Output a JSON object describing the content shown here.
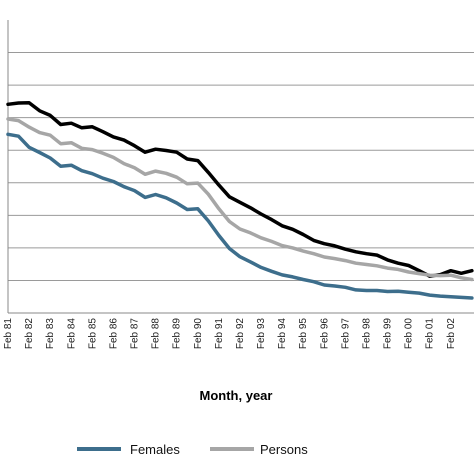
{
  "chart_data": {
    "type": "line",
    "xlabel": "Month, year",
    "ylabel": "",
    "title": "",
    "grid": true,
    "legend_position": "bottom",
    "x_tick_labels": [
      "Feb 81",
      "Feb 82",
      "Feb 83",
      "Feb 84",
      "Feb 85",
      "Feb 86",
      "Feb 87",
      "Feb 88",
      "Feb 89",
      "Feb 90",
      "Feb 91",
      "Feb 92",
      "Feb 93",
      "Feb 94",
      "Feb 95",
      "Feb 96",
      "Feb 97",
      "Feb 98",
      "Feb 99",
      "Feb 00",
      "Feb 01",
      "Feb 02"
    ],
    "x_range": [
      1981.0,
      2003.1
    ],
    "y_gridlines": [
      1,
      2,
      3,
      4,
      5,
      6,
      7,
      8
    ],
    "y_range": [
      0,
      9
    ],
    "series": [
      {
        "name": "",
        "color": "#000000",
        "legend": false,
        "points": [
          [
            1981.0,
            6.41
          ],
          [
            1981.5,
            6.45
          ],
          [
            1982.0,
            6.46
          ],
          [
            1982.5,
            6.21
          ],
          [
            1983.0,
            6.07
          ],
          [
            1983.5,
            5.79
          ],
          [
            1984.0,
            5.83
          ],
          [
            1984.5,
            5.69
          ],
          [
            1985.0,
            5.72
          ],
          [
            1985.5,
            5.57
          ],
          [
            1986.0,
            5.41
          ],
          [
            1986.5,
            5.31
          ],
          [
            1987.0,
            5.14
          ],
          [
            1987.5,
            4.94
          ],
          [
            1988.0,
            5.03
          ],
          [
            1988.5,
            4.99
          ],
          [
            1989.0,
            4.94
          ],
          [
            1989.5,
            4.73
          ],
          [
            1990.0,
            4.68
          ],
          [
            1990.5,
            4.32
          ],
          [
            1991.0,
            3.93
          ],
          [
            1991.5,
            3.57
          ],
          [
            1992.0,
            3.4
          ],
          [
            1992.5,
            3.23
          ],
          [
            1993.0,
            3.04
          ],
          [
            1993.5,
            2.87
          ],
          [
            1994.0,
            2.68
          ],
          [
            1994.5,
            2.57
          ],
          [
            1995.0,
            2.41
          ],
          [
            1995.5,
            2.23
          ],
          [
            1996.0,
            2.13
          ],
          [
            1996.5,
            2.06
          ],
          [
            1997.0,
            1.96
          ],
          [
            1997.5,
            1.88
          ],
          [
            1998.0,
            1.82
          ],
          [
            1998.5,
            1.78
          ],
          [
            1999.0,
            1.63
          ],
          [
            1999.5,
            1.53
          ],
          [
            2000.0,
            1.46
          ],
          [
            2000.5,
            1.3
          ],
          [
            2001.0,
            1.13
          ],
          [
            2001.5,
            1.18
          ],
          [
            2002.0,
            1.3
          ],
          [
            2002.5,
            1.22
          ],
          [
            2003.0,
            1.3
          ]
        ]
      },
      {
        "name": "Persons",
        "color": "#a6a6a6",
        "legend": true,
        "points": [
          [
            1981.0,
            5.96
          ],
          [
            1981.5,
            5.91
          ],
          [
            1982.0,
            5.71
          ],
          [
            1982.5,
            5.54
          ],
          [
            1983.0,
            5.46
          ],
          [
            1983.5,
            5.2
          ],
          [
            1984.0,
            5.23
          ],
          [
            1984.5,
            5.06
          ],
          [
            1985.0,
            5.02
          ],
          [
            1985.5,
            4.91
          ],
          [
            1986.0,
            4.78
          ],
          [
            1986.5,
            4.59
          ],
          [
            1987.0,
            4.46
          ],
          [
            1987.5,
            4.26
          ],
          [
            1988.0,
            4.36
          ],
          [
            1988.5,
            4.29
          ],
          [
            1989.0,
            4.17
          ],
          [
            1989.5,
            3.97
          ],
          [
            1990.0,
            3.99
          ],
          [
            1990.5,
            3.65
          ],
          [
            1991.0,
            3.2
          ],
          [
            1991.5,
            2.81
          ],
          [
            1992.0,
            2.58
          ],
          [
            1992.5,
            2.46
          ],
          [
            1993.0,
            2.31
          ],
          [
            1993.5,
            2.2
          ],
          [
            1994.0,
            2.07
          ],
          [
            1994.5,
            2.0
          ],
          [
            1995.0,
            1.9
          ],
          [
            1995.5,
            1.82
          ],
          [
            1996.0,
            1.72
          ],
          [
            1996.5,
            1.67
          ],
          [
            1997.0,
            1.61
          ],
          [
            1997.5,
            1.53
          ],
          [
            1998.0,
            1.49
          ],
          [
            1998.5,
            1.45
          ],
          [
            1999.0,
            1.38
          ],
          [
            1999.5,
            1.34
          ],
          [
            2000.0,
            1.26
          ],
          [
            2000.5,
            1.21
          ],
          [
            2001.0,
            1.16
          ],
          [
            2001.5,
            1.15
          ],
          [
            2002.0,
            1.16
          ],
          [
            2002.5,
            1.08
          ],
          [
            2003.0,
            1.03
          ]
        ]
      },
      {
        "name": "Females",
        "color": "#3d6e8c",
        "legend": true,
        "points": [
          [
            1981.0,
            5.49
          ],
          [
            1981.5,
            5.43
          ],
          [
            1982.0,
            5.09
          ],
          [
            1982.5,
            4.93
          ],
          [
            1983.0,
            4.76
          ],
          [
            1983.5,
            4.51
          ],
          [
            1984.0,
            4.54
          ],
          [
            1984.5,
            4.37
          ],
          [
            1985.0,
            4.28
          ],
          [
            1985.5,
            4.14
          ],
          [
            1986.0,
            4.04
          ],
          [
            1986.5,
            3.88
          ],
          [
            1987.0,
            3.76
          ],
          [
            1987.5,
            3.55
          ],
          [
            1988.0,
            3.64
          ],
          [
            1988.5,
            3.54
          ],
          [
            1989.0,
            3.38
          ],
          [
            1989.5,
            3.18
          ],
          [
            1990.0,
            3.2
          ],
          [
            1990.5,
            2.83
          ],
          [
            1991.0,
            2.38
          ],
          [
            1991.5,
            1.98
          ],
          [
            1992.0,
            1.73
          ],
          [
            1992.5,
            1.57
          ],
          [
            1993.0,
            1.4
          ],
          [
            1993.5,
            1.28
          ],
          [
            1994.0,
            1.17
          ],
          [
            1994.5,
            1.11
          ],
          [
            1995.0,
            1.03
          ],
          [
            1995.5,
            0.96
          ],
          [
            1996.0,
            0.86
          ],
          [
            1996.5,
            0.83
          ],
          [
            1997.0,
            0.79
          ],
          [
            1997.5,
            0.71
          ],
          [
            1998.0,
            0.69
          ],
          [
            1998.5,
            0.69
          ],
          [
            1999.0,
            0.66
          ],
          [
            1999.5,
            0.67
          ],
          [
            2000.0,
            0.64
          ],
          [
            2000.5,
            0.61
          ],
          [
            2001.0,
            0.55
          ],
          [
            2001.5,
            0.52
          ],
          [
            2002.0,
            0.5
          ],
          [
            2002.5,
            0.48
          ],
          [
            2003.0,
            0.46
          ]
        ]
      }
    ]
  },
  "legend": {
    "items": [
      {
        "label": "Females",
        "color": "#3d6e8c"
      },
      {
        "label": "Persons",
        "color": "#a6a6a6"
      }
    ]
  }
}
